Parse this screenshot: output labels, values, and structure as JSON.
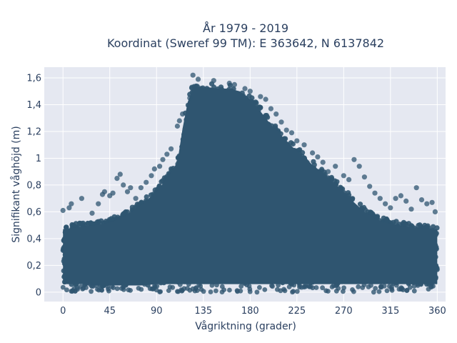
{
  "chart_data": {
    "type": "scatter",
    "title": "År 1979 - 2019",
    "subtitle": "Koordinat (Sweref 99 TM): E 363642, N 6137842",
    "xlabel": "Vågriktning (grader)",
    "ylabel": "Signifikant våghöjd (m)",
    "xlim": [
      -18,
      368
    ],
    "ylim": [
      -0.07,
      1.68
    ],
    "x_ticks": [
      0,
      45,
      90,
      135,
      180,
      225,
      270,
      315,
      360
    ],
    "x_tick_labels": [
      "0",
      "45",
      "90",
      "135",
      "180",
      "225",
      "270",
      "315",
      "360"
    ],
    "y_ticks": [
      0,
      0.2,
      0.4,
      0.6,
      0.8,
      1.0,
      1.2,
      1.4,
      1.6
    ],
    "y_tick_labels": [
      "0",
      "0,2",
      "0,4",
      "0,6",
      "0,8",
      "1",
      "1,2",
      "1,4",
      "1,6"
    ],
    "grid": true,
    "marker_color": "#2f5570",
    "plot_bg": "#e5e8f1",
    "envelope": {
      "x": [
        0,
        10,
        20,
        30,
        45,
        60,
        75,
        90,
        100,
        110,
        115,
        120,
        125,
        130,
        140,
        150,
        160,
        170,
        180,
        190,
        200,
        210,
        220,
        230,
        240,
        250,
        260,
        270,
        280,
        290,
        300,
        310,
        320,
        330,
        340,
        350,
        360
      ],
      "y_min": [
        0.05,
        0.05,
        0.05,
        0.04,
        0.04,
        0.04,
        0.04,
        0.05,
        0.05,
        0.05,
        0.05,
        0.05,
        0.05,
        0.05,
        0.05,
        0.05,
        0.05,
        0.05,
        0.05,
        0.05,
        0.05,
        0.05,
        0.05,
        0.05,
        0.05,
        0.05,
        0.05,
        0.05,
        0.05,
        0.05,
        0.05,
        0.05,
        0.05,
        0.05,
        0.05,
        0.05,
        0.05
      ],
      "y_max": [
        0.5,
        0.51,
        0.52,
        0.53,
        0.55,
        0.6,
        0.68,
        0.78,
        0.88,
        1.0,
        1.25,
        1.45,
        1.55,
        1.56,
        1.56,
        1.55,
        1.55,
        1.53,
        1.47,
        1.38,
        1.28,
        1.2,
        1.12,
        1.05,
        0.98,
        0.92,
        0.85,
        0.78,
        0.7,
        0.63,
        0.58,
        0.55,
        0.53,
        0.52,
        0.51,
        0.5,
        0.5
      ]
    },
    "outliers": [
      [
        0,
        0.61
      ],
      [
        6,
        0.63
      ],
      [
        8,
        0.66
      ],
      [
        18,
        0.7
      ],
      [
        28,
        0.59
      ],
      [
        34,
        0.66
      ],
      [
        38,
        0.73
      ],
      [
        40,
        0.75
      ],
      [
        45,
        0.72
      ],
      [
        48,
        0.74
      ],
      [
        52,
        0.85
      ],
      [
        55,
        0.88
      ],
      [
        58,
        0.8
      ],
      [
        62,
        0.75
      ],
      [
        65,
        0.78
      ],
      [
        70,
        0.7
      ],
      [
        75,
        0.78
      ],
      [
        80,
        0.82
      ],
      [
        85,
        0.87
      ],
      [
        88,
        0.92
      ],
      [
        93,
        0.94
      ],
      [
        96,
        0.99
      ],
      [
        100,
        1.03
      ],
      [
        104,
        1.07
      ],
      [
        110,
        1.24
      ],
      [
        112,
        1.28
      ],
      [
        115,
        1.33
      ],
      [
        122,
        1.45
      ],
      [
        124,
        1.53
      ],
      [
        125,
        1.62
      ],
      [
        130,
        1.59
      ],
      [
        145,
        1.58
      ],
      [
        160,
        1.56
      ],
      [
        165,
        1.55
      ],
      [
        175,
        1.52
      ],
      [
        180,
        1.5
      ],
      [
        190,
        1.46
      ],
      [
        195,
        1.44
      ],
      [
        200,
        1.37
      ],
      [
        205,
        1.33
      ],
      [
        210,
        1.27
      ],
      [
        215,
        1.21
      ],
      [
        220,
        1.19
      ],
      [
        225,
        1.13
      ],
      [
        232,
        1.1
      ],
      [
        240,
        1.04
      ],
      [
        245,
        1.01
      ],
      [
        250,
        0.97
      ],
      [
        255,
        0.9
      ],
      [
        262,
        0.94
      ],
      [
        270,
        0.87
      ],
      [
        275,
        0.84
      ],
      [
        280,
        0.99
      ],
      [
        285,
        0.94
      ],
      [
        290,
        0.86
      ],
      [
        295,
        0.79
      ],
      [
        300,
        0.74
      ],
      [
        305,
        0.7
      ],
      [
        310,
        0.66
      ],
      [
        315,
        0.63
      ],
      [
        320,
        0.7
      ],
      [
        325,
        0.72
      ],
      [
        330,
        0.68
      ],
      [
        335,
        0.62
      ],
      [
        340,
        0.78
      ],
      [
        345,
        0.69
      ],
      [
        350,
        0.66
      ],
      [
        355,
        0.67
      ],
      [
        358,
        0.6
      ]
    ]
  }
}
